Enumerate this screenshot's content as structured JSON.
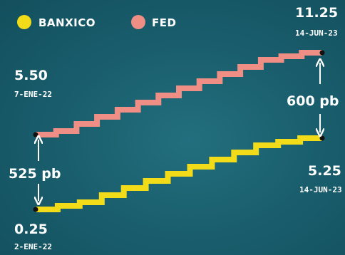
{
  "chart_data": {
    "type": "line",
    "title": "",
    "xlabel": "",
    "ylabel": "",
    "grid": false,
    "legend_position": "top-left",
    "series": [
      {
        "name": "BANXICO",
        "color": "#f2dc1a",
        "start": {
          "value": "0.25",
          "date": "2-ENE-22"
        },
        "end": {
          "value": "5.25",
          "date": "14-JUN-23"
        },
        "values": [
          0.25,
          0.5,
          0.75,
          1.25,
          1.75,
          2.25,
          2.75,
          3.25,
          3.75,
          4.25,
          4.75,
          5.0,
          5.25
        ]
      },
      {
        "name": "FED",
        "color": "#ee8e85",
        "start": {
          "value": "5.50",
          "date": "7-ENE-22"
        },
        "end": {
          "value": "11.25",
          "date": "14-JUN-23"
        },
        "values": [
          5.5,
          5.75,
          6.25,
          6.75,
          7.25,
          7.75,
          8.25,
          8.75,
          9.25,
          9.75,
          10.25,
          10.75,
          11.0,
          11.25
        ]
      }
    ],
    "annotations": {
      "start_gap": "525 pb",
      "end_gap": "600 pb"
    }
  }
}
